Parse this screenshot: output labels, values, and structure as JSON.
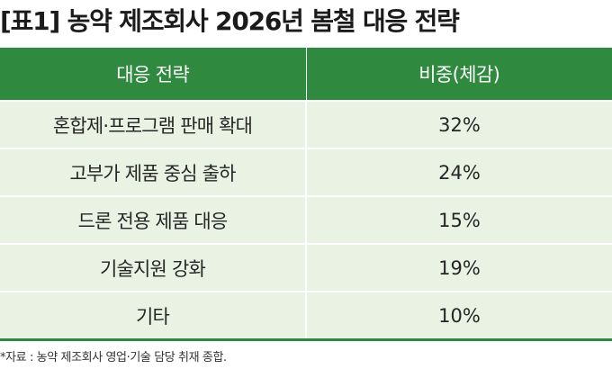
{
  "title": "[표1] 농약 제조회사 2026년 봄철 대응 전략",
  "table": {
    "headers": [
      "대응 전략",
      "비중(체감)"
    ],
    "rows": [
      {
        "strategy": "혼합제·프로그램 판매 확대",
        "share": "32%"
      },
      {
        "strategy": "고부가 제품 중심 출하",
        "share": "24%"
      },
      {
        "strategy": "드론 전용 제품 대응",
        "share": "15%"
      },
      {
        "strategy": "기술지원 강화",
        "share": "19%"
      },
      {
        "strategy": "기타",
        "share": "10%"
      }
    ]
  },
  "source": "*자료 : 농약 제조회사 영업·기술 담당 취재 종합.",
  "colors": {
    "header_bg": "#2f8a3f",
    "row_bg": "#eaf2e3"
  }
}
